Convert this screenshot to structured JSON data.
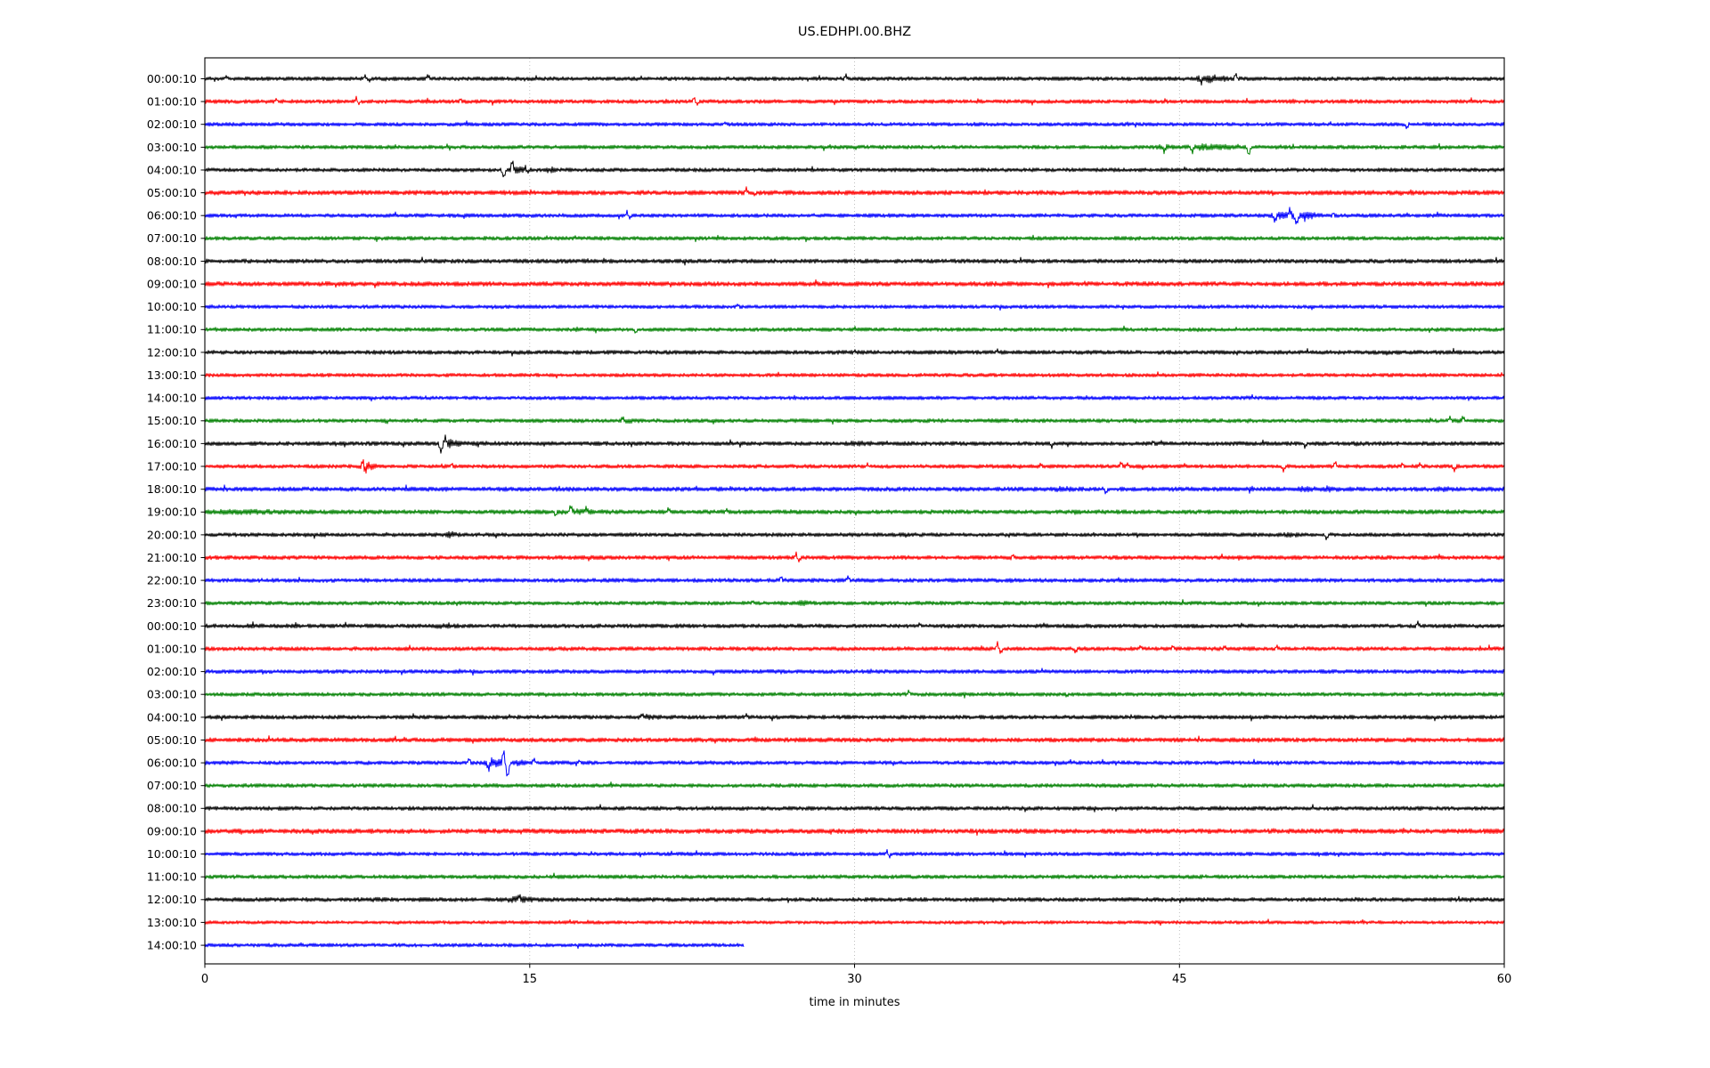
{
  "figure": {
    "background": "#ffffff"
  },
  "chart_data": {
    "type": "line",
    "variant": "seismogram-helicorder-dayplot",
    "title": "US.EDHPI.00.BHZ",
    "xlabel": "time in minutes",
    "x_range_minutes": [
      0,
      60
    ],
    "x_ticks": [
      0,
      15,
      30,
      45,
      60
    ],
    "grid": {
      "vertical_dotted_minutes": [
        15,
        30,
        45
      ],
      "color": "#b0b0b0"
    },
    "axis_color": "#000000",
    "color_cycle": [
      "#000000",
      "#ff0000",
      "#0000ff",
      "#008000"
    ],
    "events_format": [
      "shape b=burst s=spike-up n=spike-down w=up-down-wiggle",
      "minute",
      "width_minutes",
      "amplitude_px"
    ],
    "rows": [
      {
        "label": "00:00:10",
        "color": "#000000",
        "amp": 2.3,
        "dur": 60,
        "events": [
          [
            "s",
            1.0,
            0.1,
            2.5
          ],
          [
            "s",
            7.4,
            0.1,
            3.5
          ],
          [
            "n",
            7.6,
            0.1,
            2.5
          ],
          [
            "s",
            10.3,
            0.1,
            3.5
          ],
          [
            "s",
            29.6,
            0.08,
            4.0
          ],
          [
            "b",
            46.2,
            1.1,
            5.0
          ],
          [
            "n",
            46.0,
            0.1,
            4.0
          ],
          [
            "s",
            47.6,
            0.1,
            5.5
          ]
        ]
      },
      {
        "label": "01:00:10",
        "color": "#ff0000",
        "amp": 2.3,
        "dur": 60,
        "events": [
          [
            "s",
            3.3,
            0.08,
            3.0
          ],
          [
            "w",
            7.0,
            0.1,
            4.5
          ],
          [
            "s",
            11.8,
            0.08,
            3.0
          ],
          [
            "w",
            22.6,
            0.12,
            5.5
          ]
        ]
      },
      {
        "label": "02:00:10",
        "color": "#0000ff",
        "amp": 2.2,
        "dur": 60,
        "events": [
          [
            "s",
            24.0,
            0.08,
            2.5
          ],
          [
            "n",
            55.5,
            0.1,
            4.5
          ]
        ]
      },
      {
        "label": "03:00:10",
        "color": "#008000",
        "amp": 2.3,
        "dur": 60,
        "events": [
          [
            "b",
            44.2,
            0.5,
            3.5
          ],
          [
            "n",
            44.3,
            0.1,
            5.0
          ],
          [
            "b",
            46.0,
            1.0,
            4.0
          ],
          [
            "n",
            45.6,
            0.1,
            6.0
          ],
          [
            "b",
            47.1,
            0.5,
            3.5
          ],
          [
            "n",
            48.2,
            0.12,
            9.0
          ],
          [
            "b",
            49.5,
            0.4,
            3.0
          ]
        ]
      },
      {
        "label": "04:00:10",
        "color": "#000000",
        "amp": 2.3,
        "dur": 60,
        "events": [
          [
            "n",
            13.8,
            0.12,
            8.0
          ],
          [
            "s",
            14.2,
            0.1,
            10.0
          ],
          [
            "b",
            14.3,
            0.6,
            4.5
          ],
          [
            "w",
            14.8,
            0.1,
            3.5
          ],
          [
            "b",
            15.9,
            0.3,
            4.0
          ]
        ]
      },
      {
        "label": "05:00:10",
        "color": "#ff0000",
        "amp": 2.7,
        "dur": 60,
        "events": [
          [
            "s",
            25.0,
            0.1,
            5.0
          ],
          [
            "n",
            25.4,
            0.1,
            3.5
          ]
        ]
      },
      {
        "label": "06:00:10",
        "color": "#0000ff",
        "amp": 2.3,
        "dur": 60,
        "events": [
          [
            "w",
            19.5,
            0.12,
            4.5
          ],
          [
            "b",
            49.7,
            0.8,
            5.0
          ],
          [
            "n",
            49.4,
            0.12,
            7.0
          ],
          [
            "s",
            50.1,
            0.1,
            6.0
          ],
          [
            "n",
            50.4,
            0.15,
            9.0
          ],
          [
            "b",
            50.9,
            0.5,
            5.0
          ],
          [
            "s",
            52.1,
            0.08,
            3.0
          ]
        ]
      },
      {
        "label": "07:00:10",
        "color": "#008000",
        "amp": 2.3,
        "dur": 60,
        "events": [
          [
            "s",
            17.1,
            0.08,
            2.0
          ]
        ]
      },
      {
        "label": "08:00:10",
        "color": "#000000",
        "amp": 2.5,
        "dur": 60,
        "events": []
      },
      {
        "label": "09:00:10",
        "color": "#ff0000",
        "amp": 2.7,
        "dur": 60,
        "events": []
      },
      {
        "label": "10:00:10",
        "color": "#0000ff",
        "amp": 2.2,
        "dur": 60,
        "events": [
          [
            "s",
            24.6,
            0.08,
            2.5
          ]
        ]
      },
      {
        "label": "11:00:10",
        "color": "#008000",
        "amp": 2.2,
        "dur": 60,
        "events": [
          [
            "n",
            19.9,
            0.1,
            4.0
          ]
        ]
      },
      {
        "label": "12:00:10",
        "color": "#000000",
        "amp": 2.4,
        "dur": 60,
        "events": [
          [
            "s",
            30.0,
            0.08,
            2.0
          ],
          [
            "s",
            36.6,
            0.08,
            2.5
          ]
        ]
      },
      {
        "label": "13:00:10",
        "color": "#ff0000",
        "amp": 2.2,
        "dur": 60,
        "events": []
      },
      {
        "label": "14:00:10",
        "color": "#0000ff",
        "amp": 2.2,
        "dur": 60,
        "events": []
      },
      {
        "label": "15:00:10",
        "color": "#008000",
        "amp": 2.3,
        "dur": 60,
        "events": [
          [
            "b",
            19.5,
            0.5,
            3.5
          ],
          [
            "s",
            19.3,
            0.1,
            4.0
          ],
          [
            "b",
            57.8,
            0.5,
            3.5
          ],
          [
            "s",
            57.5,
            0.1,
            4.0
          ],
          [
            "s",
            58.1,
            0.1,
            4.0
          ]
        ]
      },
      {
        "label": "16:00:10",
        "color": "#000000",
        "amp": 2.4,
        "dur": 60,
        "events": [
          [
            "n",
            10.9,
            0.12,
            9.0
          ],
          [
            "s",
            11.1,
            0.1,
            7.0
          ],
          [
            "b",
            11.3,
            0.5,
            5.0
          ],
          [
            "b",
            12.6,
            1.0,
            3.2
          ],
          [
            "b",
            30.0,
            0.8,
            3.2
          ],
          [
            "n",
            39.1,
            0.1,
            4.0
          ],
          [
            "s",
            43.8,
            0.08,
            3.0
          ],
          [
            "n",
            50.8,
            0.1,
            4.5
          ],
          [
            "b",
            52.9,
            0.5,
            3.2
          ]
        ]
      },
      {
        "label": "17:00:10",
        "color": "#ff0000",
        "amp": 2.3,
        "dur": 60,
        "events": [
          [
            "b",
            7.4,
            0.45,
            6.5
          ],
          [
            "w",
            7.3,
            0.12,
            8.0
          ],
          [
            "s",
            11.4,
            0.08,
            3.0
          ],
          [
            "s",
            30.6,
            0.08,
            3.0
          ],
          [
            "s",
            38.6,
            0.08,
            3.0
          ],
          [
            "s",
            42.3,
            0.1,
            4.0
          ],
          [
            "s",
            42.6,
            0.1,
            3.5
          ],
          [
            "n",
            49.8,
            0.1,
            4.5
          ],
          [
            "s",
            52.2,
            0.1,
            4.5
          ],
          [
            "s",
            55.3,
            0.08,
            3.5
          ],
          [
            "s",
            56.1,
            0.08,
            3.5
          ],
          [
            "n",
            57.7,
            0.1,
            4.5
          ]
        ]
      },
      {
        "label": "18:00:10",
        "color": "#0000ff",
        "amp": 2.6,
        "dur": 60,
        "events": [
          [
            "b",
            39.5,
            0.6,
            3.5
          ],
          [
            "n",
            41.6,
            0.1,
            4.0
          ],
          [
            "b",
            44.4,
            0.5,
            3.0
          ],
          [
            "b",
            50.7,
            0.5,
            4.0
          ],
          [
            "b",
            51.8,
            0.4,
            4.0
          ],
          [
            "b",
            57.1,
            0.4,
            3.5
          ]
        ]
      },
      {
        "label": "19:00:10",
        "color": "#008000",
        "amp": 2.5,
        "dur": 60,
        "events": [
          [
            "b",
            1.5,
            2.5,
            3.2
          ],
          [
            "b",
            17.0,
            1.4,
            3.5
          ],
          [
            "n",
            16.2,
            0.1,
            4.0
          ],
          [
            "s",
            16.9,
            0.12,
            6.0
          ],
          [
            "s",
            17.6,
            0.1,
            4.5
          ],
          [
            "s",
            21.4,
            0.1,
            3.5
          ],
          [
            "s",
            24.1,
            0.08,
            3.0
          ]
        ]
      },
      {
        "label": "20:00:10",
        "color": "#000000",
        "amp": 2.3,
        "dur": 60,
        "events": [
          [
            "b",
            11.3,
            0.4,
            4.0
          ],
          [
            "b",
            50.0,
            0.7,
            3.0
          ],
          [
            "n",
            51.8,
            0.12,
            5.0
          ]
        ]
      },
      {
        "label": "21:00:10",
        "color": "#ff0000",
        "amp": 2.4,
        "dur": 60,
        "events": [
          [
            "w",
            27.3,
            0.12,
            5.0
          ],
          [
            "s",
            37.3,
            0.08,
            3.0
          ]
        ]
      },
      {
        "label": "22:00:10",
        "color": "#0000ff",
        "amp": 2.4,
        "dur": 60,
        "events": [
          [
            "s",
            26.6,
            0.1,
            4.0
          ],
          [
            "s",
            29.7,
            0.1,
            3.5
          ]
        ]
      },
      {
        "label": "23:00:10",
        "color": "#008000",
        "amp": 2.3,
        "dur": 60,
        "events": [
          [
            "b",
            27.6,
            0.4,
            4.0
          ],
          [
            "s",
            25.3,
            0.08,
            2.5
          ]
        ]
      },
      {
        "label": "00:00:10",
        "color": "#000000",
        "amp": 2.4,
        "dur": 60,
        "events": [
          [
            "b",
            2.2,
            0.5,
            2.8
          ],
          [
            "b",
            11.0,
            0.7,
            4.0
          ],
          [
            "s",
            33.0,
            0.08,
            2.5
          ],
          [
            "s",
            56.0,
            0.1,
            4.0
          ]
        ]
      },
      {
        "label": "01:00:10",
        "color": "#ff0000",
        "amp": 2.4,
        "dur": 60,
        "events": [
          [
            "w",
            36.6,
            0.15,
            6.0
          ],
          [
            "n",
            40.2,
            0.1,
            4.0
          ],
          [
            "s",
            43.2,
            0.09,
            3.5
          ],
          [
            "s",
            44.7,
            0.09,
            3.5
          ],
          [
            "s",
            47.1,
            0.09,
            3.5
          ],
          [
            "s",
            49.5,
            0.08,
            3.0
          ]
        ]
      },
      {
        "label": "02:00:10",
        "color": "#0000ff",
        "amp": 2.3,
        "dur": 60,
        "events": []
      },
      {
        "label": "03:00:10",
        "color": "#008000",
        "amp": 2.3,
        "dur": 60,
        "events": [
          [
            "s",
            32.5,
            0.1,
            4.0
          ],
          [
            "n",
            39.8,
            0.08,
            2.5
          ]
        ]
      },
      {
        "label": "04:00:10",
        "color": "#000000",
        "amp": 2.4,
        "dur": 60,
        "events": [
          [
            "b",
            20.4,
            0.7,
            3.5
          ],
          [
            "s",
            20.2,
            0.1,
            4.0
          ],
          [
            "s",
            25.0,
            0.08,
            2.5
          ]
        ]
      },
      {
        "label": "05:00:10",
        "color": "#ff0000",
        "amp": 2.6,
        "dur": 60,
        "events": []
      },
      {
        "label": "06:00:10",
        "color": "#0000ff",
        "amp": 2.3,
        "dur": 60,
        "events": [
          [
            "s",
            12.2,
            0.1,
            5.0
          ],
          [
            "b",
            13.2,
            0.6,
            6.0
          ],
          [
            "n",
            13.1,
            0.12,
            8.0
          ],
          [
            "w",
            13.8,
            0.15,
            14.0
          ],
          [
            "n",
            14.0,
            0.1,
            9.0
          ],
          [
            "b",
            14.5,
            0.4,
            4.0
          ],
          [
            "s",
            15.2,
            0.1,
            3.5
          ],
          [
            "s",
            17.3,
            0.08,
            3.0
          ]
        ]
      },
      {
        "label": "07:00:10",
        "color": "#008000",
        "amp": 2.3,
        "dur": 60,
        "events": []
      },
      {
        "label": "08:00:10",
        "color": "#000000",
        "amp": 2.4,
        "dur": 60,
        "events": []
      },
      {
        "label": "09:00:10",
        "color": "#ff0000",
        "amp": 2.8,
        "dur": 60,
        "events": []
      },
      {
        "label": "10:00:10",
        "color": "#0000ff",
        "amp": 2.2,
        "dur": 60,
        "events": [
          [
            "w",
            31.5,
            0.1,
            3.5
          ]
        ]
      },
      {
        "label": "11:00:10",
        "color": "#008000",
        "amp": 2.3,
        "dur": 60,
        "events": []
      },
      {
        "label": "12:00:10",
        "color": "#000000",
        "amp": 2.4,
        "dur": 60,
        "events": [
          [
            "b",
            7.8,
            0.4,
            2.8
          ],
          [
            "b",
            14.3,
            1.0,
            4.0
          ],
          [
            "s",
            14.5,
            0.1,
            4.5
          ]
        ]
      },
      {
        "label": "13:00:10",
        "color": "#ff0000",
        "amp": 2.0,
        "dur": 60,
        "events": []
      },
      {
        "label": "14:00:10",
        "color": "#0000ff",
        "amp": 2.2,
        "dur": 24.9,
        "events": []
      }
    ]
  }
}
